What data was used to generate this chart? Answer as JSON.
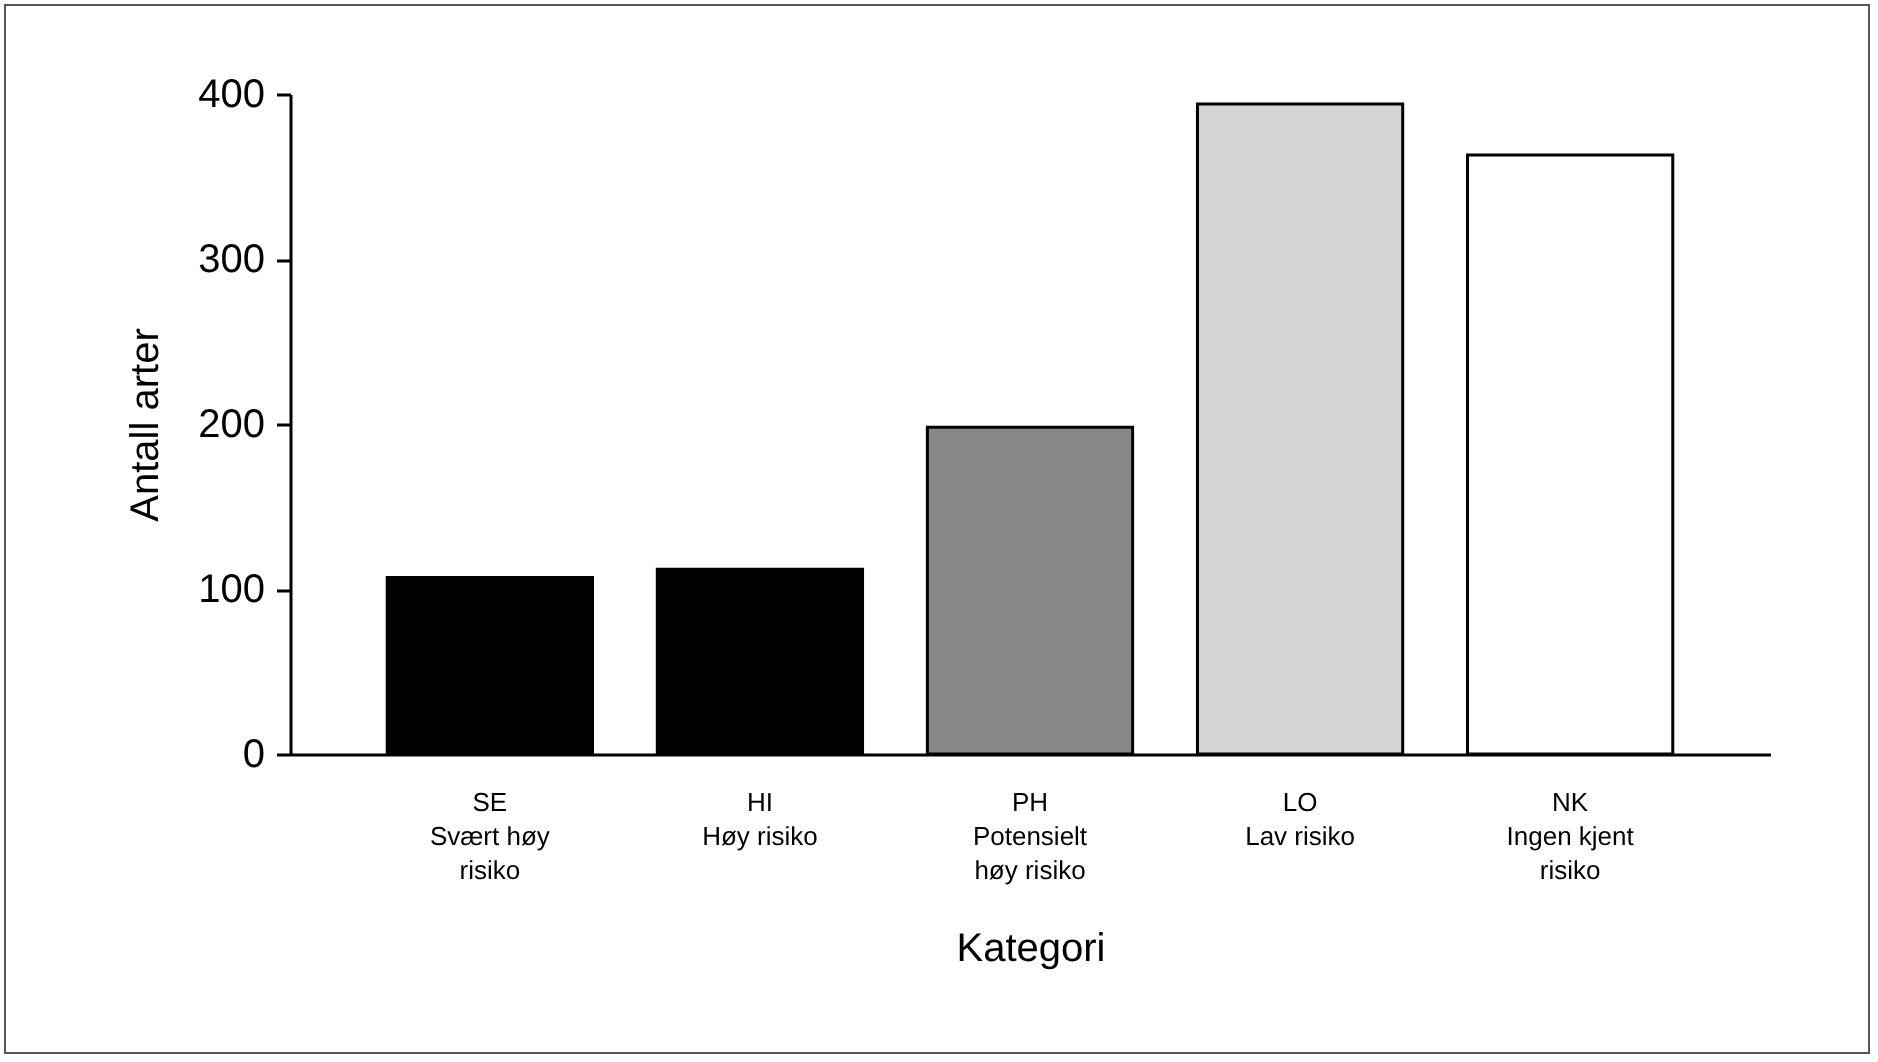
{
  "chart_data": {
    "type": "bar",
    "xlabel": "Kategori",
    "ylabel": "Antall arter",
    "categories": [
      "SE\nSvært høy\nrisiko",
      "HI\nHøy risiko",
      "PH\nPotensielt\nhøy risiko",
      "LO\nLav risiko",
      "NK\nIngen kjent\nrisiko"
    ],
    "values": [
      107,
      112,
      198,
      394,
      363
    ],
    "colors": [
      "#000000",
      "#000000",
      "#888888",
      "#d4d4d4",
      "#ffffff"
    ],
    "ylim": [
      0,
      400
    ],
    "yticks": [
      0,
      100,
      200,
      300,
      400
    ]
  }
}
